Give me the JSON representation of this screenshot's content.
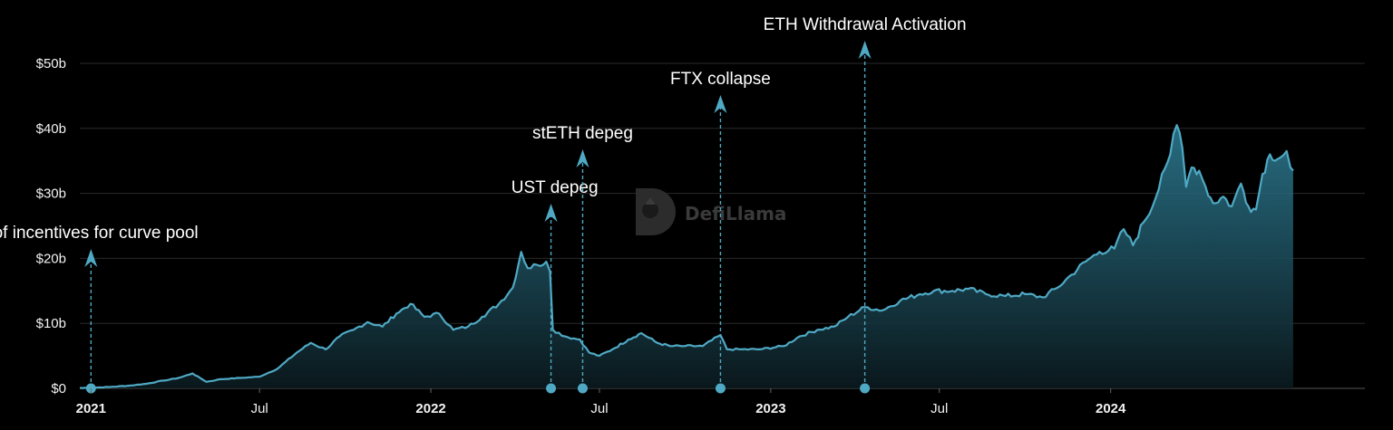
{
  "chart_data": {
    "type": "area",
    "title": "",
    "xlabel": "",
    "ylabel": "",
    "ylim": [
      0,
      50
    ],
    "xlim": [
      "2020-12-20",
      "2024-09-30"
    ],
    "y_ticks": [
      {
        "value": 0,
        "label": "$0"
      },
      {
        "value": 10,
        "label": "$10b"
      },
      {
        "value": 20,
        "label": "$20b"
      },
      {
        "value": 30,
        "label": "$30b"
      },
      {
        "value": 40,
        "label": "$40b"
      },
      {
        "value": 50,
        "label": "$50b"
      }
    ],
    "x_ticks": [
      {
        "date": "2021-01-01",
        "label": "2021",
        "bold": true
      },
      {
        "date": "2021-07-01",
        "label": "Jul",
        "bold": false
      },
      {
        "date": "2022-01-01",
        "label": "2022",
        "bold": true
      },
      {
        "date": "2022-07-01",
        "label": "Jul",
        "bold": false
      },
      {
        "date": "2023-01-01",
        "label": "2023",
        "bold": true
      },
      {
        "date": "2023-07-01",
        "label": "Jul",
        "bold": false
      },
      {
        "date": "2024-01-01",
        "label": "2024",
        "bold": true
      }
    ],
    "grid": true,
    "line_color": "#4fa9c4",
    "area_color": "#2e7f97",
    "series": [
      {
        "values": [
          [
            "2020-12-20",
            0.05
          ],
          [
            "2021-01-01",
            0.1
          ],
          [
            "2021-01-20",
            0.2
          ],
          [
            "2021-02-10",
            0.4
          ],
          [
            "2021-03-01",
            0.7
          ],
          [
            "2021-03-20",
            1.2
          ],
          [
            "2021-04-05",
            1.6
          ],
          [
            "2021-04-20",
            2.3
          ],
          [
            "2021-05-05",
            1.0
          ],
          [
            "2021-05-20",
            1.4
          ],
          [
            "2021-06-10",
            1.6
          ],
          [
            "2021-07-01",
            1.8
          ],
          [
            "2021-07-20",
            3.0
          ],
          [
            "2021-08-10",
            5.5
          ],
          [
            "2021-08-25",
            7.0
          ],
          [
            "2021-09-10",
            6.0
          ],
          [
            "2021-09-25",
            8.0
          ],
          [
            "2021-10-10",
            9.0
          ],
          [
            "2021-10-25",
            10.2
          ],
          [
            "2021-11-10",
            9.5
          ],
          [
            "2021-11-25",
            11.5
          ],
          [
            "2021-12-10",
            13.0
          ],
          [
            "2021-12-25",
            11.0
          ],
          [
            "2022-01-10",
            11.5
          ],
          [
            "2022-01-25",
            9.0
          ],
          [
            "2022-02-10",
            9.5
          ],
          [
            "2022-02-25",
            11.0
          ],
          [
            "2022-03-15",
            13.0
          ],
          [
            "2022-03-30",
            15.5
          ],
          [
            "2022-04-08",
            21.0
          ],
          [
            "2022-04-15",
            18.5
          ],
          [
            "2022-04-25",
            19.0
          ],
          [
            "2022-05-05",
            19.5
          ],
          [
            "2022-05-09",
            18.0
          ],
          [
            "2022-05-12",
            9.0
          ],
          [
            "2022-05-25",
            8.0
          ],
          [
            "2022-06-10",
            7.5
          ],
          [
            "2022-06-20",
            5.5
          ],
          [
            "2022-07-01",
            5.0
          ],
          [
            "2022-07-15",
            6.0
          ],
          [
            "2022-08-01",
            7.5
          ],
          [
            "2022-08-15",
            8.5
          ],
          [
            "2022-09-01",
            7.0
          ],
          [
            "2022-09-15",
            6.5
          ],
          [
            "2022-10-01",
            6.5
          ],
          [
            "2022-10-20",
            6.5
          ],
          [
            "2022-11-08",
            8.2
          ],
          [
            "2022-11-15",
            6.0
          ],
          [
            "2022-12-01",
            6.0
          ],
          [
            "2022-12-20",
            6.0
          ],
          [
            "2023-01-15",
            6.5
          ],
          [
            "2023-02-01",
            8.0
          ],
          [
            "2023-02-20",
            9.0
          ],
          [
            "2023-03-10",
            9.5
          ],
          [
            "2023-03-25",
            11.0
          ],
          [
            "2023-04-12",
            12.5
          ],
          [
            "2023-05-01",
            12.0
          ],
          [
            "2023-05-20",
            13.5
          ],
          [
            "2023-06-10",
            14.5
          ],
          [
            "2023-06-25",
            15.0
          ],
          [
            "2023-07-15",
            15.0
          ],
          [
            "2023-08-01",
            15.3
          ],
          [
            "2023-08-20",
            14.5
          ],
          [
            "2023-09-10",
            14.2
          ],
          [
            "2023-10-01",
            14.5
          ],
          [
            "2023-10-20",
            14.0
          ],
          [
            "2023-11-05",
            15.5
          ],
          [
            "2023-11-20",
            17.5
          ],
          [
            "2023-12-05",
            19.5
          ],
          [
            "2023-12-20",
            21.0
          ],
          [
            "2024-01-05",
            21.5
          ],
          [
            "2024-01-15",
            24.5
          ],
          [
            "2024-01-25",
            22.0
          ],
          [
            "2024-02-05",
            25.5
          ],
          [
            "2024-02-15",
            28.0
          ],
          [
            "2024-02-25",
            33.0
          ],
          [
            "2024-03-05",
            36.0
          ],
          [
            "2024-03-12",
            40.5
          ],
          [
            "2024-03-18",
            37.0
          ],
          [
            "2024-03-22",
            31.0
          ],
          [
            "2024-03-28",
            34.0
          ],
          [
            "2024-04-05",
            33.5
          ],
          [
            "2024-04-12",
            31.0
          ],
          [
            "2024-04-20",
            28.5
          ],
          [
            "2024-05-01",
            29.5
          ],
          [
            "2024-05-10",
            28.0
          ],
          [
            "2024-05-20",
            31.5
          ],
          [
            "2024-05-28",
            28.0
          ],
          [
            "2024-06-05",
            27.5
          ],
          [
            "2024-06-12",
            33.0
          ],
          [
            "2024-06-20",
            36.0
          ],
          [
            "2024-07-01",
            35.5
          ],
          [
            "2024-07-08",
            36.5
          ],
          [
            "2024-07-12",
            34.0
          ],
          [
            "2024-07-15",
            33.5
          ]
        ]
      }
    ],
    "annotations": [
      {
        "date": "2021-01-01",
        "label": "t of incentives for curve pool",
        "label_offset": 150,
        "label_align": "middle"
      },
      {
        "date": "2022-05-10",
        "label": "UST depeg",
        "label_offset": 200,
        "label_align": "end"
      },
      {
        "date": "2022-06-13",
        "label": "stETH depeg",
        "label_offset": 260,
        "label_align": "middle"
      },
      {
        "date": "2022-11-08",
        "label": "FTX collapse",
        "label_offset": 320,
        "label_align": "middle"
      },
      {
        "date": "2023-04-12",
        "label": "ETH Withdrawal Activation",
        "label_offset": 380,
        "label_align": "middle"
      }
    ]
  },
  "watermark": {
    "text": "DefiLlama",
    "icon": "llama-logo-icon"
  }
}
